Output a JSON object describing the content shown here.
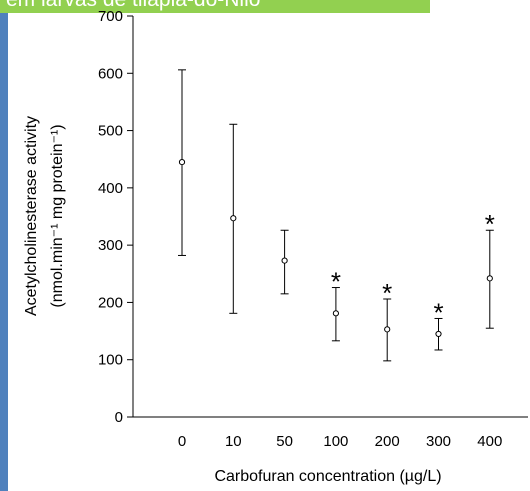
{
  "banner": {
    "text": "em larvas de tilápia-do-Nilo",
    "bg_color": "#92d050",
    "left_bar_color": "#4f81bd"
  },
  "chart_data": {
    "type": "scatter",
    "title": "",
    "xlabel": "Carbofuran concentration (µg/L)",
    "ylabel_line1": "Acetylcholinesterase activity",
    "ylabel_line2": "(nmol.min⁻¹ mg protein⁻¹)",
    "categories": [
      "0",
      "10",
      "50",
      "100",
      "200",
      "300",
      "400"
    ],
    "y_ticks": [
      "0",
      "100",
      "200",
      "300",
      "400",
      "500",
      "600",
      "700"
    ],
    "ylim": [
      0,
      700
    ],
    "grid": false,
    "series": [
      {
        "mean": [
          445,
          347,
          273,
          181,
          153,
          145,
          242
        ],
        "lower": [
          282,
          181,
          215,
          133,
          98,
          117,
          155
        ],
        "upper": [
          606,
          511,
          326,
          226,
          206,
          172,
          326
        ],
        "significant": [
          false,
          false,
          false,
          true,
          true,
          true,
          true
        ]
      }
    ],
    "significance_marker": "*"
  }
}
